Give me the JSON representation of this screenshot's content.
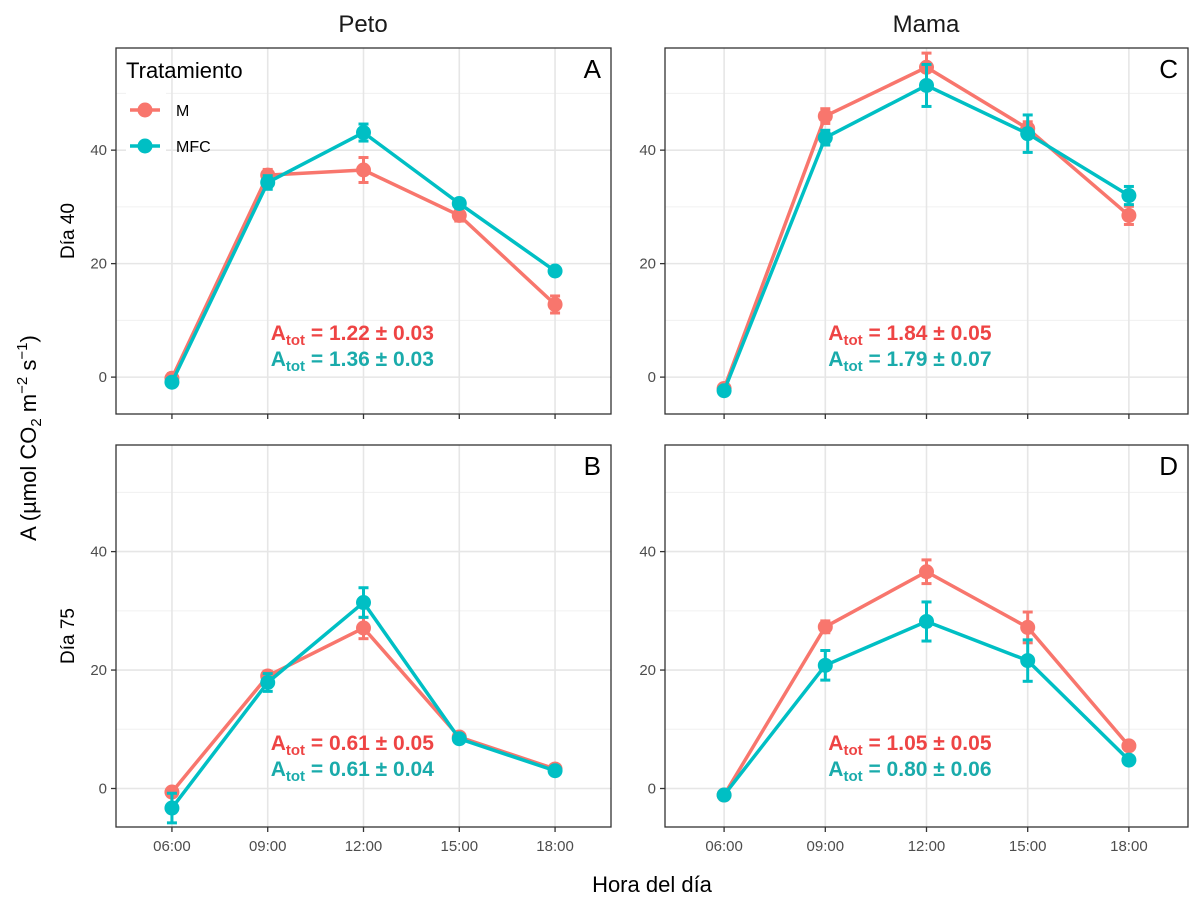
{
  "chart_data": {
    "type": "line",
    "layout": "facet-grid",
    "xlabel": "Hora del día",
    "ylabel": "A (µmol CO2 m-2 s-1)",
    "ylabel_parts": {
      "main": "A (",
      "unit1": "µmol CO",
      "sub": "2",
      "unit2": " m",
      "sup1": "−2",
      "unit3": " s",
      "sup2": "−1",
      "end": ")"
    },
    "x": [
      "06:00",
      "09:00",
      "12:00",
      "15:00",
      "18:00"
    ],
    "y_ticks": [
      0,
      20,
      40
    ],
    "ylim": [
      -6.5,
      58
    ],
    "grid": true,
    "columns": [
      "Peto",
      "Mama"
    ],
    "rows": [
      "Día 40",
      "Día 75"
    ],
    "legend": {
      "title": "Tratamiento",
      "placement": "top-left-inside",
      "entries": [
        {
          "name": "M",
          "color": "#F8766D"
        },
        {
          "name": "MFC",
          "color": "#00BFC4"
        }
      ]
    },
    "annotation_colors": {
      "M": "#EE4444",
      "MFC": "#1AABAB"
    },
    "panels": [
      {
        "tag": "A",
        "column": "Peto",
        "row": "Día 40",
        "series": [
          {
            "name": "M",
            "values": [
              -0.2,
              35.6,
              36.5,
              28.5,
              12.8
            ],
            "errors": [
              0.8,
              1.0,
              2.2,
              1.0,
              1.5
            ]
          },
          {
            "name": "MFC",
            "values": [
              -0.9,
              34.3,
              43.1,
              30.6,
              18.7
            ],
            "errors": [
              0.6,
              1.2,
              1.5,
              0.8,
              0.6
            ]
          }
        ],
        "annotations": [
          {
            "series": "M",
            "label": "A",
            "sub": "tot",
            "text": " = 1.22 ± 0.03"
          },
          {
            "series": "MFC",
            "label": "A",
            "sub": "tot",
            "text": " = 1.36 ± 0.03"
          }
        ]
      },
      {
        "tag": "B",
        "column": "Peto",
        "row": "Día 75",
        "series": [
          {
            "name": "M",
            "values": [
              -0.6,
              19.0,
              27.1,
              8.7,
              3.3
            ],
            "errors": [
              0.5,
              0.8,
              1.8,
              0.6,
              0.4
            ]
          },
          {
            "name": "MFC",
            "values": [
              -3.3,
              17.9,
              31.4,
              8.4,
              3.0
            ],
            "errors": [
              2.5,
              1.5,
              2.5,
              0.6,
              0.4
            ]
          }
        ],
        "annotations": [
          {
            "series": "M",
            "label": "A",
            "sub": "tot",
            "text": " = 0.61 ± 0.05"
          },
          {
            "series": "MFC",
            "label": "A",
            "sub": "tot",
            "text": " = 0.61 ± 0.04"
          }
        ]
      },
      {
        "tag": "C",
        "column": "Mama",
        "row": "Día 40",
        "series": [
          {
            "name": "M",
            "values": [
              -2.0,
              46.0,
              54.6,
              43.8,
              28.5
            ],
            "errors": [
              0.6,
              1.3,
              2.5,
              1.2,
              1.6
            ]
          },
          {
            "name": "MFC",
            "values": [
              -2.4,
              42.2,
              51.4,
              42.9,
              32.0
            ],
            "errors": [
              0.6,
              1.3,
              3.7,
              3.3,
              1.6
            ]
          }
        ],
        "annotations": [
          {
            "series": "M",
            "label": "A",
            "sub": "tot",
            "text": " = 1.84 ± 0.05"
          },
          {
            "series": "MFC",
            "label": "A",
            "sub": "tot",
            "text": " = 1.79 ± 0.07"
          }
        ]
      },
      {
        "tag": "D",
        "column": "Mama",
        "row": "Día 75",
        "series": [
          {
            "name": "M",
            "values": [
              -1.1,
              27.3,
              36.6,
              27.2,
              7.2
            ],
            "errors": [
              0.4,
              1.0,
              2.0,
              2.6,
              0.6
            ]
          },
          {
            "name": "MFC",
            "values": [
              -1.1,
              20.8,
              28.2,
              21.6,
              4.8
            ],
            "errors": [
              0.4,
              2.5,
              3.3,
              3.5,
              0.5
            ]
          }
        ],
        "annotations": [
          {
            "series": "M",
            "label": "A",
            "sub": "tot",
            "text": " = 1.05 ± 0.05"
          },
          {
            "series": "MFC",
            "label": "A",
            "sub": "tot",
            "text": " = 0.80 ± 0.06"
          }
        ]
      }
    ]
  }
}
